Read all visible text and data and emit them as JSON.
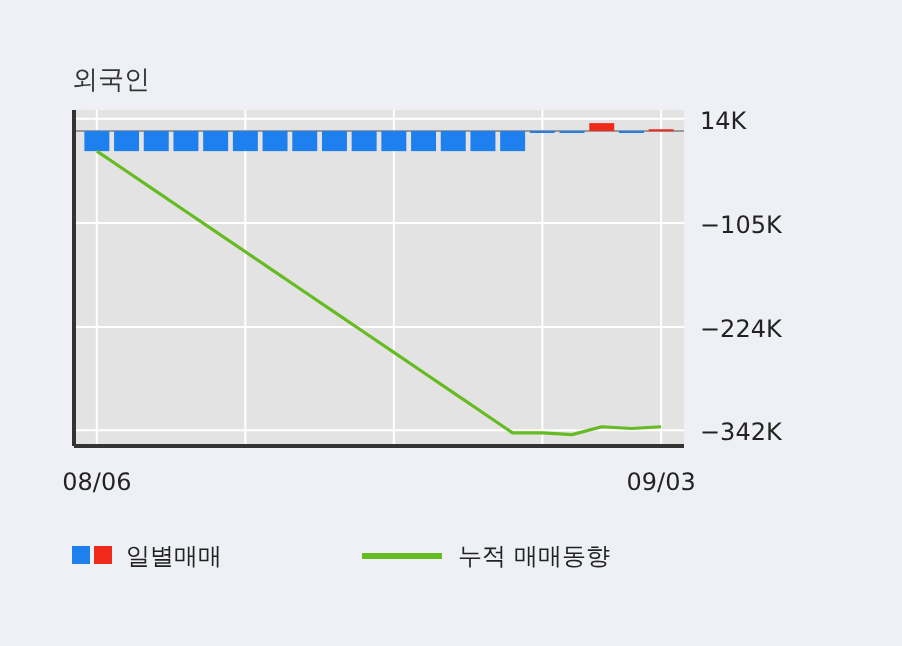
{
  "chart_data": {
    "type": "bar",
    "title": "외국인",
    "categories": [
      "08/06",
      null,
      null,
      null,
      null,
      null,
      null,
      null,
      null,
      null,
      null,
      null,
      null,
      null,
      null,
      null,
      null,
      null,
      null,
      "09/03"
    ],
    "series": [
      {
        "name": "일별매매",
        "colors": [
          "#1e7fef",
          "#1e7fef",
          "#1e7fef",
          "#1e7fef",
          "#1e7fef",
          "#1e7fef",
          "#1e7fef",
          "#1e7fef",
          "#1e7fef",
          "#1e7fef",
          "#1e7fef",
          "#1e7fef",
          "#1e7fef",
          "#1e7fef",
          "#1e7fef",
          "#1e7fef",
          "#1e7fef",
          "#ef2a1a",
          "#1e7fef",
          "#ef2a1a"
        ],
        "values": [
          -23,
          -23,
          -23,
          -23,
          -23,
          -23,
          -23,
          -23,
          -23,
          -23,
          -23,
          -23,
          -23,
          -23,
          -23,
          0,
          -2,
          9,
          -2,
          2
        ]
      },
      {
        "name": "누적 매매동향",
        "type": "line",
        "color": "#66bb22",
        "values": [
          -23,
          -46,
          -69,
          -92,
          -115,
          -138,
          -161,
          -184,
          -207,
          -230,
          -253,
          -276,
          -299,
          -322,
          -345,
          -345,
          -347,
          -338,
          -340,
          -338
        ]
      }
    ],
    "ylim": [
      -360,
      24
    ],
    "yticks": [
      {
        "value": 14,
        "label": "14K"
      },
      {
        "value": -105,
        "label": "−105K"
      },
      {
        "value": -224,
        "label": "−224K"
      },
      {
        "value": -342,
        "label": "−342K"
      }
    ],
    "grid": true,
    "legend": "bottom"
  }
}
